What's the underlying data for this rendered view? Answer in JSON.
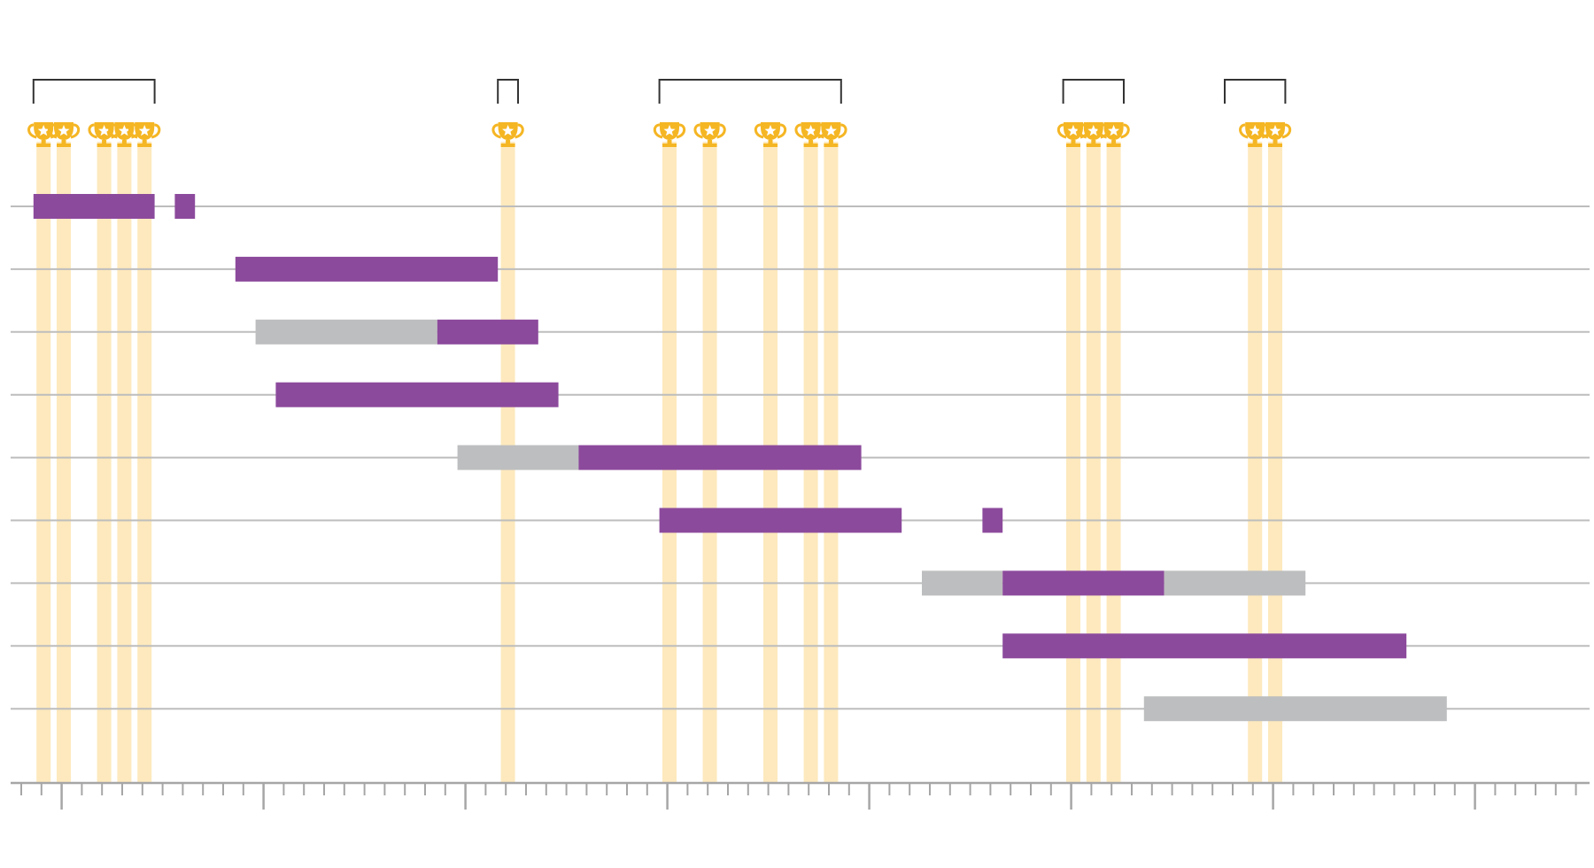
{
  "chart_data": {
    "type": "gantt",
    "title": "",
    "xlabel": "",
    "ylabel": "",
    "x_axis": {
      "range": [
        0,
        78
      ],
      "minor_tick_every": 1,
      "major_tick_every": 10,
      "major_tick_offset": 2,
      "tick_labels_visible": false
    },
    "rows": [
      {
        "segments": [
          {
            "start": 1,
            "end": 7,
            "kind": "purple"
          },
          {
            "start": 8,
            "end": 9,
            "kind": "purple"
          }
        ]
      },
      {
        "segments": [
          {
            "start": 11,
            "end": 24,
            "kind": "purple"
          }
        ]
      },
      {
        "segments": [
          {
            "start": 12,
            "end": 21,
            "kind": "gray"
          },
          {
            "start": 21,
            "end": 26,
            "kind": "purple"
          }
        ]
      },
      {
        "segments": [
          {
            "start": 13,
            "end": 27,
            "kind": "purple"
          }
        ]
      },
      {
        "segments": [
          {
            "start": 22,
            "end": 28,
            "kind": "gray"
          },
          {
            "start": 28,
            "end": 42,
            "kind": "purple"
          }
        ]
      },
      {
        "segments": [
          {
            "start": 32,
            "end": 44,
            "kind": "purple"
          },
          {
            "start": 48,
            "end": 49,
            "kind": "purple"
          }
        ]
      },
      {
        "segments": [
          {
            "start": 45,
            "end": 49,
            "kind": "gray"
          },
          {
            "start": 49,
            "end": 57,
            "kind": "purple"
          },
          {
            "start": 57,
            "end": 64,
            "kind": "gray"
          }
        ]
      },
      {
        "segments": [
          {
            "start": 49,
            "end": 69,
            "kind": "purple"
          }
        ]
      },
      {
        "segments": [
          {
            "start": 56,
            "end": 71,
            "kind": "gray"
          }
        ]
      }
    ],
    "trophies": [
      1.5,
      2.5,
      4.5,
      5.5,
      6.5,
      24.5,
      32.5,
      34.5,
      37.5,
      39.5,
      40.5,
      52.5,
      53.5,
      54.5,
      61.5,
      62.5
    ],
    "brackets": [
      [
        1,
        7
      ],
      [
        24,
        25
      ],
      [
        32,
        41
      ],
      [
        52,
        55
      ],
      [
        60,
        63
      ]
    ],
    "grid": "horizontal",
    "legend": "none"
  },
  "colors": {
    "purple": "#8c4a9c",
    "gray": "#bdbebf",
    "trophy_band": "#fde9bd",
    "trophy": "#f5b624",
    "gridline": "#bdbdbd",
    "axis": "#a6a6a6",
    "bracket": "#333333"
  },
  "icons": {
    "trophy": "trophy-icon"
  }
}
